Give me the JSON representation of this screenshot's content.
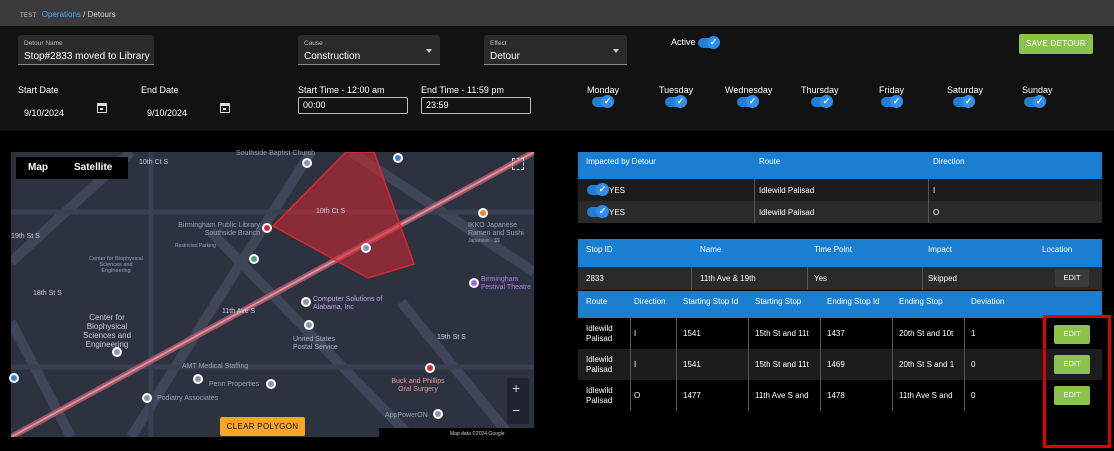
{
  "breadcrumb": {
    "prefix": "TEST",
    "parent": "Operations",
    "separator": "/",
    "current": "Detours"
  },
  "form": {
    "detour_name": {
      "label": "Detour Name",
      "value": "Stop#2833 moved to Library"
    },
    "cause": {
      "label": "Cause",
      "value": "Construction"
    },
    "effect": {
      "label": "Effect",
      "value": "Detour"
    },
    "active_label": "Active",
    "save_label": "SAVE DETOUR",
    "start_date": {
      "label": "Start Date",
      "value": "9/10/2024"
    },
    "end_date": {
      "label": "End Date",
      "value": "9/10/2024"
    },
    "start_time": {
      "label": "Start Time - 12:00 am",
      "value": "00:00"
    },
    "end_time": {
      "label": "End Time - 11:59 pm",
      "value": "23:59"
    },
    "days": [
      "Monday",
      "Tuesday",
      "Wednesday",
      "Thursday",
      "Friday",
      "Saturday",
      "Sunday"
    ]
  },
  "map": {
    "tabs": [
      "Map",
      "Satellite"
    ],
    "clear_label": "CLEAR POLYGON",
    "credit": "Map data ©2024 Google",
    "zoom_in": "+",
    "zoom_out": "−",
    "labels": {
      "church": "Southside Baptist Church",
      "street_10th_1": "10th Ct S",
      "street_10th_2": "10th Ct S",
      "library": "Birmingham Public Library Southside Branch",
      "restricted": "Restricted Parking",
      "ikko": "IKKO Japanese Ramen and Sushi",
      "ikko_sub": "Japanese · $$",
      "festival": "Birmingham Festival Theatre",
      "cbse_small": "Center for Biophysical Sciences and Engineering",
      "street_11th": "11th Ave S",
      "street_18th": "18th St S",
      "street_19th_1": "19th St S",
      "street_19th_2": "19th St S",
      "compsol": "Computer Solutions of Alabama, Inc",
      "usps": "United States Postal Service",
      "cbse": "Center for Biophysical Sciences and Engineering",
      "amt": "AMT Medical Staffing",
      "penn": "Penn Properties",
      "podiatry": "Podiatry Associates",
      "buck": "Buck and Phillips Oral Surgery",
      "appower": "AppPowerON"
    }
  },
  "impacted": {
    "headers": [
      "Impacted by Detour",
      "Route",
      "Direction"
    ],
    "rows": [
      {
        "yes": "YES",
        "route": "Idlewild Palisad",
        "direction": "I"
      },
      {
        "yes": "YES",
        "route": "Idlewild Palisad",
        "direction": "O"
      }
    ]
  },
  "stops": {
    "headers": [
      "Stop ID",
      "Name",
      "Time Point",
      "Impact",
      "Location"
    ],
    "row": {
      "id": "2833",
      "name": "11th Ave & 19th",
      "time_point": "Yes",
      "impact": "Skipped",
      "edit": "EDIT"
    }
  },
  "deviations": {
    "headers": [
      "Route",
      "Direction",
      "Starting Stop Id",
      "Starting Stop",
      "Ending Stop Id",
      "Ending Stop",
      "Deviation"
    ],
    "rows": [
      {
        "route": "Idlewild Palisad",
        "direction": "I",
        "start_id": "1541",
        "start_stop": "15th St and 11t",
        "end_id": "1437",
        "end_stop": "20th St and 10t",
        "deviation": "1",
        "edit": "EDIT"
      },
      {
        "route": "Idlewild Palisad",
        "direction": "I",
        "start_id": "1541",
        "start_stop": "15th St and 11t",
        "end_id": "1469",
        "end_stop": "20th St S and 1",
        "deviation": "0",
        "edit": "EDIT"
      },
      {
        "route": "Idlewild Palisad",
        "direction": "O",
        "start_id": "1477",
        "start_stop": "11th Ave S and",
        "end_id": "1478",
        "end_stop": "11th Ave S and",
        "deviation": "0",
        "edit": "EDIT"
      }
    ]
  },
  "colors": {
    "accent_blue": "#1a7fd0",
    "save_green": "#8bc34a",
    "clear_orange": "#f5a623",
    "highlight_red": "#e00000",
    "polygon_red": "#d9282f"
  }
}
